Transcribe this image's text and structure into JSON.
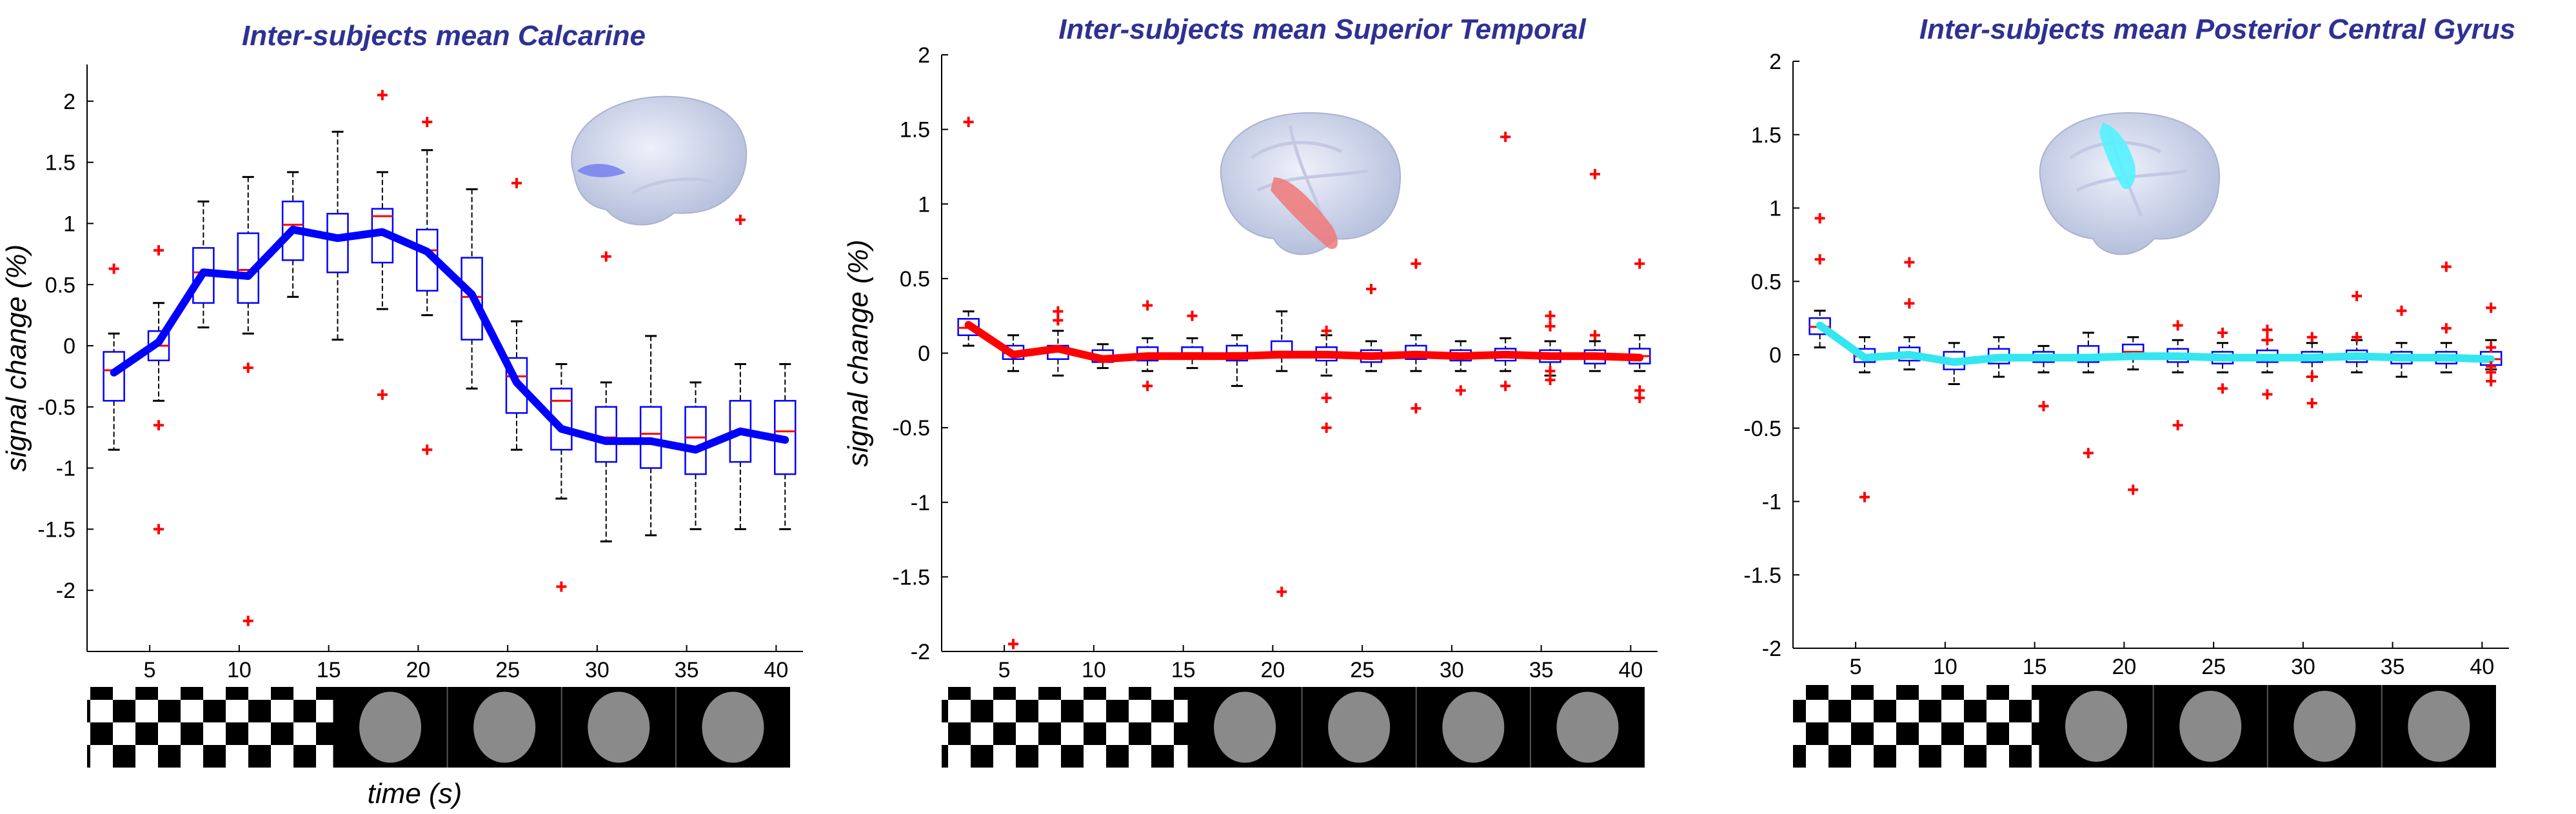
{
  "figure": {
    "xlabel": "time (s)"
  },
  "chart_data": [
    {
      "type": "box",
      "title": "Inter-subjects mean Calcarine",
      "xlabel": "time (s)",
      "ylabel": "signal change (%)",
      "xlim": [
        1.5,
        41.5
      ],
      "ylim": [
        -2.5,
        2.3
      ],
      "xticks": [
        5,
        10,
        15,
        20,
        25,
        30,
        35,
        40
      ],
      "yticks": [
        -2,
        -1.5,
        -1,
        -0.5,
        0,
        0.5,
        1,
        1.5,
        2
      ],
      "x": [
        3,
        5.5,
        8,
        10.5,
        13,
        15.5,
        18,
        20.5,
        23,
        25.5,
        28,
        30.5,
        33,
        35.5,
        38,
        40.5
      ],
      "mean_line": {
        "color": "#0000ff",
        "values": [
          -0.22,
          0.03,
          0.6,
          0.57,
          0.95,
          0.88,
          0.93,
          0.77,
          0.42,
          -0.3,
          -0.68,
          -0.78,
          -0.78,
          -0.85,
          -0.7,
          -0.77
        ]
      },
      "box_stats": {
        "median": [
          -0.2,
          0.0,
          0.6,
          0.62,
          0.99,
          0.9,
          1.06,
          0.78,
          0.4,
          -0.25,
          -0.45,
          -0.75,
          -0.72,
          -0.75,
          -0.7,
          -0.7
        ],
        "q1": [
          -0.45,
          -0.12,
          0.35,
          0.35,
          0.7,
          0.6,
          0.68,
          0.45,
          0.05,
          -0.55,
          -0.85,
          -0.95,
          -1.0,
          -1.05,
          -0.95,
          -1.05
        ],
        "q3": [
          -0.05,
          0.12,
          0.8,
          0.92,
          1.18,
          1.08,
          1.12,
          0.95,
          0.72,
          -0.1,
          -0.35,
          -0.5,
          -0.5,
          -0.5,
          -0.45,
          -0.45
        ],
        "whisker_low": [
          -0.85,
          -0.45,
          0.15,
          0.1,
          0.4,
          0.05,
          0.3,
          0.25,
          -0.35,
          -0.85,
          -1.25,
          -1.6,
          -1.55,
          -1.5,
          -1.5,
          -1.5
        ],
        "whisker_high": [
          0.1,
          0.35,
          1.18,
          1.38,
          1.42,
          1.75,
          1.42,
          1.6,
          1.28,
          0.2,
          -0.15,
          -0.3,
          0.08,
          -0.3,
          -0.15,
          -0.15
        ]
      },
      "outliers": [
        [
          3,
          0.63
        ],
        [
          5.5,
          0.78
        ],
        [
          5.5,
          -0.65
        ],
        [
          5.5,
          -1.5
        ],
        [
          10.5,
          -0.18
        ],
        [
          10.5,
          -2.25
        ],
        [
          18,
          2.05
        ],
        [
          18,
          -0.4
        ],
        [
          20.5,
          1.83
        ],
        [
          20.5,
          -0.85
        ],
        [
          25.5,
          1.33
        ],
        [
          28,
          -1.97
        ],
        [
          30.5,
          0.73
        ],
        [
          38,
          1.03
        ]
      ],
      "stimulus": {
        "checker_end": 15,
        "gray_blocks": 4
      },
      "roi_color": "#7a84f0"
    },
    {
      "type": "box",
      "title": "Inter-subjects mean Superior Temporal",
      "xlabel": "",
      "ylabel": "signal change (%)",
      "xlim": [
        1.5,
        41.5
      ],
      "ylim": [
        -2,
        2
      ],
      "xticks": [
        5,
        10,
        15,
        20,
        25,
        30,
        35,
        40
      ],
      "yticks": [
        -2,
        -1.5,
        -1,
        -0.5,
        0,
        0.5,
        1,
        1.5,
        2
      ],
      "x": [
        3,
        5.5,
        8,
        10.5,
        13,
        15.5,
        18,
        20.5,
        23,
        25.5,
        28,
        30.5,
        33,
        35.5,
        38,
        40.5
      ],
      "mean_line": {
        "color": "#ff0000",
        "values": [
          0.19,
          -0.01,
          0.03,
          -0.04,
          -0.02,
          -0.02,
          -0.02,
          -0.01,
          -0.01,
          -0.02,
          -0.01,
          -0.02,
          -0.01,
          -0.02,
          -0.02,
          -0.03
        ]
      },
      "box_stats": {
        "median": [
          0.17,
          0.0,
          0.01,
          -0.02,
          -0.01,
          0.0,
          0.0,
          0.01,
          -0.01,
          -0.02,
          0.0,
          -0.01,
          -0.01,
          -0.02,
          -0.02,
          -0.02
        ],
        "q1": [
          0.12,
          -0.04,
          -0.04,
          -0.06,
          -0.05,
          -0.04,
          -0.05,
          -0.03,
          -0.05,
          -0.06,
          -0.04,
          -0.05,
          -0.05,
          -0.06,
          -0.07,
          -0.07
        ],
        "q3": [
          0.23,
          0.05,
          0.05,
          0.02,
          0.04,
          0.04,
          0.05,
          0.08,
          0.04,
          0.02,
          0.05,
          0.02,
          0.03,
          0.02,
          0.02,
          0.03
        ],
        "whisker_low": [
          0.05,
          -0.12,
          -0.15,
          -0.1,
          -0.12,
          -0.1,
          -0.22,
          -0.12,
          -0.15,
          -0.12,
          -0.12,
          -0.12,
          -0.12,
          -0.15,
          -0.12,
          -0.12
        ],
        "whisker_high": [
          0.28,
          0.12,
          0.15,
          0.06,
          0.1,
          0.1,
          0.12,
          0.28,
          0.12,
          0.08,
          0.12,
          0.08,
          0.1,
          0.08,
          0.08,
          0.12
        ]
      },
      "outliers": [
        [
          3,
          1.55
        ],
        [
          5.5,
          -1.95
        ],
        [
          8,
          0.28
        ],
        [
          8,
          0.22
        ],
        [
          13,
          0.32
        ],
        [
          13,
          -0.22
        ],
        [
          15.5,
          0.25
        ],
        [
          20.5,
          -1.6
        ],
        [
          23,
          0.15
        ],
        [
          23,
          -0.3
        ],
        [
          23,
          -0.5
        ],
        [
          25.5,
          0.43
        ],
        [
          28,
          0.6
        ],
        [
          28,
          -0.37
        ],
        [
          30.5,
          -0.25
        ],
        [
          33,
          1.45
        ],
        [
          33,
          -0.22
        ],
        [
          35.5,
          0.25
        ],
        [
          35.5,
          0.18
        ],
        [
          35.5,
          -0.12
        ],
        [
          35.5,
          -0.18
        ],
        [
          38,
          1.2
        ],
        [
          38,
          0.12
        ],
        [
          40.5,
          0.6
        ],
        [
          40.5,
          -0.25
        ],
        [
          40.5,
          -0.3
        ]
      ],
      "stimulus": {
        "checker_end": 15,
        "gray_blocks": 4
      },
      "roi_color": "#f07878"
    },
    {
      "type": "box",
      "title": "Inter-subjects mean Posterior Central Gyrus",
      "xlabel": "",
      "ylabel": "",
      "xlim": [
        1.5,
        41.5
      ],
      "ylim": [
        -2,
        2
      ],
      "xticks": [
        5,
        10,
        15,
        20,
        25,
        30,
        35,
        40
      ],
      "yticks": [
        -2,
        -1.5,
        -1,
        -0.5,
        0,
        0.5,
        1,
        1.5,
        2
      ],
      "x": [
        3,
        5.5,
        8,
        10.5,
        13,
        15.5,
        18,
        20.5,
        23,
        25.5,
        28,
        30.5,
        33,
        35.5,
        38,
        40.5
      ],
      "mean_line": {
        "color": "#33e6f0",
        "values": [
          0.2,
          -0.02,
          0.0,
          -0.05,
          -0.02,
          -0.02,
          -0.02,
          -0.01,
          -0.01,
          -0.02,
          -0.02,
          -0.02,
          -0.01,
          -0.02,
          -0.02,
          -0.03
        ]
      },
      "box_stats": {
        "median": [
          0.19,
          -0.01,
          0.0,
          -0.05,
          -0.02,
          -0.02,
          0.0,
          0.02,
          -0.01,
          -0.02,
          -0.02,
          -0.02,
          -0.01,
          -0.02,
          -0.02,
          -0.03
        ],
        "q1": [
          0.14,
          -0.05,
          -0.04,
          -0.1,
          -0.06,
          -0.05,
          -0.05,
          -0.02,
          -0.05,
          -0.06,
          -0.05,
          -0.05,
          -0.05,
          -0.06,
          -0.06,
          -0.07
        ],
        "q3": [
          0.25,
          0.04,
          0.05,
          0.02,
          0.04,
          0.02,
          0.06,
          0.07,
          0.04,
          0.02,
          0.03,
          0.02,
          0.03,
          0.02,
          0.02,
          0.02
        ],
        "whisker_low": [
          0.05,
          -0.12,
          -0.1,
          -0.2,
          -0.15,
          -0.12,
          -0.12,
          -0.1,
          -0.12,
          -0.12,
          -0.12,
          -0.15,
          -0.12,
          -0.15,
          -0.12,
          -0.1
        ],
        "whisker_high": [
          0.3,
          0.12,
          0.12,
          0.08,
          0.12,
          0.06,
          0.15,
          0.12,
          0.1,
          0.08,
          0.1,
          0.08,
          0.1,
          0.08,
          0.08,
          0.1
        ]
      },
      "outliers": [
        [
          3,
          0.93
        ],
        [
          3,
          0.65
        ],
        [
          5.5,
          -0.97
        ],
        [
          8,
          0.63
        ],
        [
          8,
          0.35
        ],
        [
          15.5,
          -0.35
        ],
        [
          18,
          -0.67
        ],
        [
          20.5,
          -0.92
        ],
        [
          23,
          0.2
        ],
        [
          23,
          -0.48
        ],
        [
          25.5,
          0.15
        ],
        [
          25.5,
          -0.23
        ],
        [
          28,
          0.17
        ],
        [
          28,
          0.1
        ],
        [
          28,
          -0.27
        ],
        [
          30.5,
          0.12
        ],
        [
          30.5,
          -0.15
        ],
        [
          30.5,
          -0.33
        ],
        [
          33,
          0.4
        ],
        [
          33,
          0.12
        ],
        [
          35.5,
          0.3
        ],
        [
          38,
          0.6
        ],
        [
          38,
          0.18
        ],
        [
          40.5,
          0.32
        ],
        [
          40.5,
          0.05
        ],
        [
          40.5,
          -0.08
        ],
        [
          40.5,
          -0.12
        ],
        [
          40.5,
          -0.18
        ]
      ],
      "stimulus": {
        "checker_end": 15,
        "gray_blocks": 4
      },
      "roi_color": "#55f2ff"
    }
  ]
}
